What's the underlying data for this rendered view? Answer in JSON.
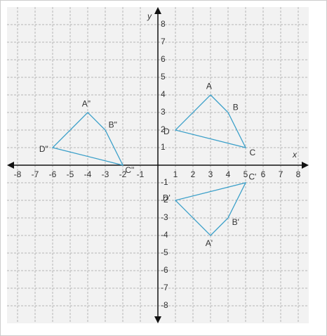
{
  "chart_data": {
    "type": "polygon",
    "x_label": "x",
    "y_label": "y",
    "xlim": [
      -8.6,
      8.6
    ],
    "ylim": [
      -9,
      9
    ],
    "xticks": [
      -8,
      -7,
      -6,
      -5,
      -4,
      -3,
      -2,
      -1,
      1,
      2,
      3,
      4,
      5,
      6,
      7,
      8
    ],
    "yticks": [
      -8,
      -7,
      -6,
      -5,
      -4,
      -3,
      -2,
      -1,
      1,
      2,
      3,
      4,
      5,
      6,
      7,
      8
    ],
    "grid": true,
    "color": "#3a9fc9",
    "polygons": [
      {
        "points": [
          {
            "label": "A",
            "x": 3,
            "y": 4
          },
          {
            "label": "B",
            "x": 4,
            "y": 3
          },
          {
            "label": "C",
            "x": 5,
            "y": 1
          },
          {
            "label": "D",
            "x": 1,
            "y": 2
          }
        ]
      },
      {
        "points": [
          {
            "label": "A'",
            "x": 3,
            "y": -4
          },
          {
            "label": "B'",
            "x": 4,
            "y": -3
          },
          {
            "label": "C'",
            "x": 5,
            "y": -1
          },
          {
            "label": "D'",
            "x": 1,
            "y": -2
          }
        ]
      },
      {
        "points": [
          {
            "label": "A\"",
            "x": -4,
            "y": 3
          },
          {
            "label": "B\"",
            "x": -3,
            "y": 2
          },
          {
            "label": "C\"",
            "x": -2,
            "y": 0
          },
          {
            "label": "D\"",
            "x": -6,
            "y": 1
          }
        ]
      }
    ]
  }
}
